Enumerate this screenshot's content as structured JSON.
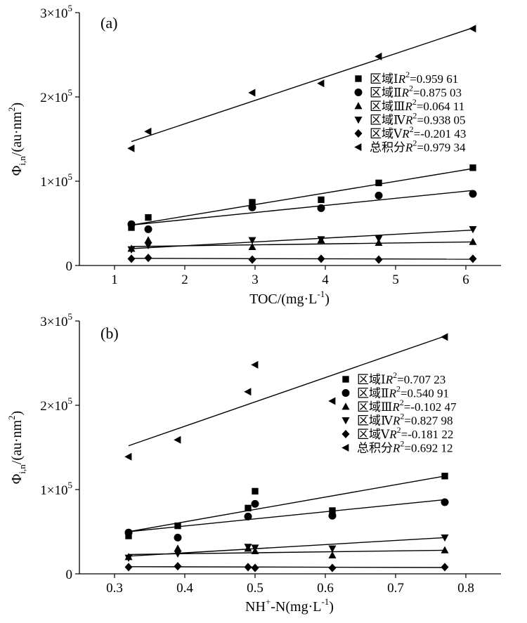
{
  "chart_data": [
    {
      "type": "scatter",
      "panel_label": "(a)",
      "xlabel": "TOC/(mg·L",
      "xlabel_sup": "-1",
      "xlabel_close": ")",
      "ylabel_main": "Φ",
      "ylabel_sub": "i,n",
      "ylabel_unit": "/(au·nm",
      "ylabel_sup": "2",
      "ylabel_close": ")",
      "xlim": [
        0.5,
        6.5
      ],
      "ylim": [
        0,
        300000
      ],
      "xticks": [
        1,
        2,
        3,
        4,
        5,
        6
      ],
      "xtick_labels": [
        "1",
        "2",
        "3",
        "4",
        "5",
        "6"
      ],
      "yticks": [
        0,
        100000,
        200000,
        300000
      ],
      "ytick_labels": [
        {
          "m": "0",
          "e": ""
        },
        {
          "m": "1×10",
          "e": "5"
        },
        {
          "m": "2×10",
          "e": "5"
        },
        {
          "m": "3×10",
          "e": "5"
        }
      ],
      "grid": false,
      "legend_position": "upper-right",
      "series": [
        {
          "marker": "square",
          "legend_prefix": "区域Ⅰ",
          "r2_label": "R",
          "r2_sup": "2",
          "r2_value": "=0.959 61",
          "x": [
            1.24,
            1.48,
            2.96,
            3.94,
            4.76,
            6.1
          ],
          "y": [
            45000,
            57000,
            75000,
            78000,
            98000,
            116000
          ],
          "fit": [
            [
              1.24,
              48000
            ],
            [
              6.1,
              115000
            ]
          ]
        },
        {
          "marker": "circle",
          "legend_prefix": "区域Ⅱ",
          "r2_label": "R",
          "r2_sup": "2",
          "r2_value": "=0.875 03",
          "x": [
            1.24,
            1.48,
            2.96,
            3.94,
            4.76,
            6.1
          ],
          "y": [
            49000,
            43000,
            69000,
            68000,
            83000,
            85000
          ],
          "fit": [
            [
              1.24,
              48000
            ],
            [
              6.1,
              89000
            ]
          ]
        },
        {
          "marker": "triangle-up",
          "legend_prefix": "区域Ⅲ",
          "r2_label": "R",
          "r2_sup": "2",
          "r2_value": "=0.064 11",
          "x": [
            1.24,
            1.48,
            2.96,
            3.94,
            4.76,
            6.1
          ],
          "y": [
            20000,
            30000,
            22000,
            30000,
            27000,
            28000
          ],
          "fit": [
            [
              1.24,
              22500
            ],
            [
              6.1,
              28000
            ]
          ]
        },
        {
          "marker": "triangle-down",
          "legend_prefix": "区域Ⅳ",
          "r2_label": "R",
          "r2_sup": "2",
          "r2_value": "=0.938 05",
          "x": [
            1.24,
            1.48,
            2.96,
            3.94,
            4.76,
            6.1
          ],
          "y": [
            19000,
            24000,
            30000,
            31000,
            32000,
            43000
          ],
          "fit": [
            [
              1.24,
              20000
            ],
            [
              6.1,
              42000
            ]
          ]
        },
        {
          "marker": "diamond",
          "legend_prefix": "区域Ⅴ",
          "r2_label": "R",
          "r2_sup": "2",
          "r2_value": "=-0.201 43",
          "x": [
            1.24,
            1.48,
            2.96,
            3.94,
            4.76,
            6.1
          ],
          "y": [
            8000,
            9000,
            7000,
            8000,
            7000,
            8000
          ],
          "fit": [
            [
              1.24,
              8500
            ],
            [
              6.1,
              7500
            ]
          ]
        },
        {
          "marker": "triangle-left",
          "legend_prefix": "总积分",
          "r2_label": "R",
          "r2_sup": "2",
          "r2_value": "=0.979 34",
          "x": [
            1.24,
            1.48,
            2.96,
            3.94,
            4.76,
            6.1
          ],
          "y": [
            139000,
            159000,
            205000,
            216000,
            248000,
            281000
          ],
          "fit": [
            [
              1.24,
              147000
            ],
            [
              6.1,
              282000
            ]
          ]
        }
      ]
    },
    {
      "type": "scatter",
      "panel_label": "(b)",
      "xlabel": "NH",
      "xlabel_sub": "4",
      "xlabel_sup": "+",
      "xlabel_rest": "-N(mg·L",
      "xlabel_sup2": "-1",
      "xlabel_close": ")",
      "ylabel_main": "Φ",
      "ylabel_sub": "i,n",
      "ylabel_unit": "/(au·nm",
      "ylabel_sup": "2",
      "ylabel_close": ")",
      "xlim": [
        0.25,
        0.85
      ],
      "ylim": [
        0,
        300000
      ],
      "xticks": [
        0.3,
        0.4,
        0.5,
        0.6,
        0.7,
        0.8
      ],
      "xtick_labels": [
        "0.3",
        "0.4",
        "0.5",
        "0.6",
        "0.7",
        "0.8"
      ],
      "yticks": [
        0,
        100000,
        200000,
        300000
      ],
      "ytick_labels": [
        {
          "m": "0",
          "e": ""
        },
        {
          "m": "1×10",
          "e": "5"
        },
        {
          "m": "2×10",
          "e": "5"
        },
        {
          "m": "3×10",
          "e": "5"
        }
      ],
      "grid": false,
      "legend_position": "upper-right",
      "series": [
        {
          "marker": "square",
          "legend_prefix": "区域Ⅰ",
          "r2_label": "R",
          "r2_sup": "2",
          "r2_value": "=0.707 23",
          "x": [
            0.32,
            0.39,
            0.49,
            0.5,
            0.61,
            0.77
          ],
          "y": [
            45000,
            57000,
            78000,
            98000,
            75000,
            116000
          ],
          "fit": [
            [
              0.32,
              50000
            ],
            [
              0.77,
              116000
            ]
          ]
        },
        {
          "marker": "circle",
          "legend_prefix": "区域Ⅱ",
          "r2_label": "R",
          "r2_sup": "2",
          "r2_value": "=0.540 91",
          "x": [
            0.32,
            0.39,
            0.49,
            0.5,
            0.61,
            0.77
          ],
          "y": [
            49000,
            43000,
            68000,
            83000,
            69000,
            85000
          ],
          "fit": [
            [
              0.32,
              50000
            ],
            [
              0.77,
              88000
            ]
          ]
        },
        {
          "marker": "triangle-up",
          "legend_prefix": "区域Ⅲ",
          "r2_label": "R",
          "r2_sup": "2",
          "r2_value": "=-0.102 47",
          "x": [
            0.32,
            0.39,
            0.49,
            0.5,
            0.61,
            0.77
          ],
          "y": [
            20000,
            30000,
            30000,
            27000,
            22000,
            28000
          ],
          "fit": [
            [
              0.32,
              23000
            ],
            [
              0.77,
              28000
            ]
          ]
        },
        {
          "marker": "triangle-down",
          "legend_prefix": "区域Ⅳ",
          "r2_label": "R",
          "r2_sup": "2",
          "r2_value": "=0.827 98",
          "x": [
            0.32,
            0.39,
            0.49,
            0.5,
            0.61,
            0.77
          ],
          "y": [
            19000,
            24000,
            32000,
            31000,
            30000,
            43000
          ],
          "fit": [
            [
              0.32,
              21000
            ],
            [
              0.77,
              43000
            ]
          ]
        },
        {
          "marker": "diamond",
          "legend_prefix": "区域Ⅴ",
          "r2_label": "R",
          "r2_sup": "2",
          "r2_value": "=-0.181 22",
          "x": [
            0.32,
            0.39,
            0.49,
            0.5,
            0.61,
            0.77
          ],
          "y": [
            8000,
            9000,
            8000,
            7000,
            7000,
            8000
          ],
          "fit": [
            [
              0.32,
              8500
            ],
            [
              0.77,
              7500
            ]
          ]
        },
        {
          "marker": "triangle-left",
          "legend_prefix": "总积分",
          "r2_label": "R",
          "r2_sup": "2",
          "r2_value": "=0.692 12",
          "x": [
            0.32,
            0.39,
            0.49,
            0.5,
            0.61,
            0.77
          ],
          "y": [
            139000,
            159000,
            216000,
            248000,
            205000,
            281000
          ],
          "fit": [
            [
              0.32,
              152000
            ],
            [
              0.77,
              282000
            ]
          ]
        }
      ]
    }
  ]
}
